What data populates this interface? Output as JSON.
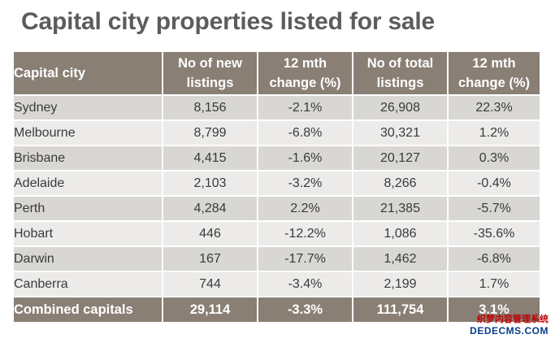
{
  "title": "Capital city properties listed for sale",
  "table": {
    "headers": [
      "Capital city",
      "No of new listings",
      "12 mth change (%)",
      "No of total listings",
      "12 mth change (%)"
    ],
    "rows": [
      {
        "city": "Sydney",
        "new_listings": "8,156",
        "new_change": "-2.1%",
        "total_listings": "26,908",
        "total_change": "22.3%"
      },
      {
        "city": "Melbourne",
        "new_listings": "8,799",
        "new_change": "-6.8%",
        "total_listings": "30,321",
        "total_change": "1.2%"
      },
      {
        "city": "Brisbane",
        "new_listings": "4,415",
        "new_change": "-1.6%",
        "total_listings": "20,127",
        "total_change": "0.3%"
      },
      {
        "city": "Adelaide",
        "new_listings": "2,103",
        "new_change": "-3.2%",
        "total_listings": "8,266",
        "total_change": "-0.4%"
      },
      {
        "city": "Perth",
        "new_listings": "4,284",
        "new_change": "2.2%",
        "total_listings": "21,385",
        "total_change": "-5.7%"
      },
      {
        "city": "Hobart",
        "new_listings": "446",
        "new_change": "-12.2%",
        "total_listings": "1,086",
        "total_change": "-35.6%"
      },
      {
        "city": "Darwin",
        "new_listings": "167",
        "new_change": "-17.7%",
        "total_listings": "1,462",
        "total_change": "-6.8%"
      },
      {
        "city": "Canberra",
        "new_listings": "744",
        "new_change": "-3.4%",
        "total_listings": "2,199",
        "total_change": "1.7%"
      }
    ],
    "total": {
      "city": "Combined capitals",
      "new_listings": "29,114",
      "new_change": "-3.3%",
      "total_listings": "111,754",
      "total_change": "3.1%"
    }
  },
  "watermark": {
    "line1": "织梦内容管理系统",
    "line2": "DEDECMS.COM"
  },
  "colors": {
    "header_bg": "#8a7f75",
    "row_odd": "#d9d7d4",
    "row_even": "#ecebe9",
    "title": "#5c5c5c"
  }
}
